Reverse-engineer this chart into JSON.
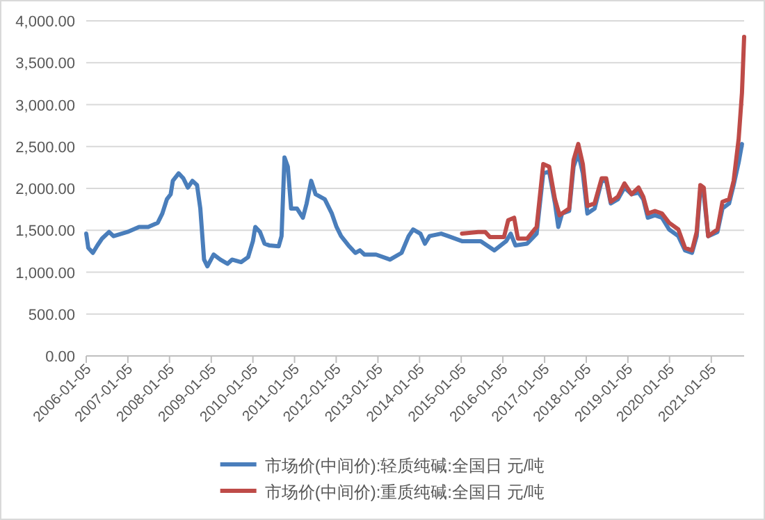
{
  "chart_data": {
    "type": "line",
    "legend": "bottom",
    "grid": "y",
    "marker": "none",
    "line_style": "solid",
    "xlim": [
      "2006-01-05",
      "2021-10-20"
    ],
    "ylim": [
      0,
      4000
    ],
    "xticks": [
      "2006-01-05",
      "2007-01-05",
      "2008-01-05",
      "2009-01-05",
      "2010-01-05",
      "2011-01-05",
      "2012-01-05",
      "2013-01-05",
      "2014-01-05",
      "2015-01-05",
      "2016-01-05",
      "2017-01-05",
      "2018-01-05",
      "2019-01-05",
      "2020-01-05",
      "2021-01-05"
    ],
    "yticks": [
      {
        "value": 0,
        "label": "0.00"
      },
      {
        "value": 500,
        "label": "500.00"
      },
      {
        "value": 1000,
        "label": "1,000.00"
      },
      {
        "value": 1500,
        "label": "1,500.00"
      },
      {
        "value": 2000,
        "label": "2,000.00"
      },
      {
        "value": 2500,
        "label": "2,500.00"
      },
      {
        "value": 3000,
        "label": "3,000.00"
      },
      {
        "value": 3500,
        "label": "3,500.00"
      },
      {
        "value": 4000,
        "label": "4,000.00"
      }
    ],
    "series": [
      {
        "name": "市场价(中间价):轻质纯碱:全国日 元/吨",
        "color": "#4a7ebb",
        "x": [
          "2006-01-05",
          "2006-01-23",
          "2006-03-04",
          "2006-04-13",
          "2006-05-23",
          "2006-07-24",
          "2006-09-02",
          "2007-01-01",
          "2007-04-13",
          "2007-07-02",
          "2007-09-24",
          "2007-11-03",
          "2007-12-13",
          "2008-01-15",
          "2008-02-03",
          "2008-03-25",
          "2008-05-05",
          "2008-06-14",
          "2008-07-24",
          "2008-09-02",
          "2008-10-01",
          "2008-11-03",
          "2008-12-02",
          "2009-01-26",
          "2009-03-25",
          "2009-05-27",
          "2009-07-06",
          "2009-09-24",
          "2009-11-24",
          "2010-01-05",
          "2010-01-26",
          "2010-03-08",
          "2010-04-17",
          "2010-05-27",
          "2010-08-19",
          "2010-09-13",
          "2010-10-09",
          "2010-11-07",
          "2010-12-06",
          "2011-01-26",
          "2011-03-19",
          "2011-04-21",
          "2011-05-31",
          "2011-07-09",
          "2011-09-27",
          "2011-11-28",
          "2012-01-08",
          "2012-02-17",
          "2012-04-21",
          "2012-06-21",
          "2012-07-31",
          "2012-09-09",
          "2012-12-20",
          "2013-04-21",
          "2013-07-31",
          "2013-10-01",
          "2013-11-10",
          "2014-01-12",
          "2014-02-21",
          "2014-04-02",
          "2014-07-13",
          "2014-09-13",
          "2015-01-12",
          "2015-06-25",
          "2015-10-23",
          "2016-02-03",
          "2016-03-14",
          "2016-04-24",
          "2016-08-04",
          "2016-10-27",
          "2016-12-24",
          "2017-02-14",
          "2017-04-06",
          "2017-05-05",
          "2017-06-07",
          "2017-08-08",
          "2017-09-16",
          "2017-10-27",
          "2017-12-06",
          "2018-01-15",
          "2018-03-19",
          "2018-05-20",
          "2018-06-29",
          "2018-08-08",
          "2018-10-09",
          "2018-12-06",
          "2019-02-06",
          "2019-04-09",
          "2019-05-20",
          "2019-06-29",
          "2019-08-30",
          "2019-10-31",
          "2020-01-01",
          "2020-03-22",
          "2020-05-20",
          "2020-07-20",
          "2020-08-30",
          "2020-10-01",
          "2020-10-31",
          "2020-12-09",
          "2021-02-28",
          "2021-04-13",
          "2021-06-10",
          "2021-07-20",
          "2021-09-02",
          "2021-10-01"
        ],
        "values": [
          1460,
          1290,
          1230,
          1320,
          1400,
          1480,
          1430,
          1480,
          1540,
          1540,
          1590,
          1700,
          1870,
          1930,
          2090,
          2180,
          2120,
          2010,
          2090,
          2040,
          1760,
          1150,
          1070,
          1210,
          1150,
          1100,
          1150,
          1120,
          1180,
          1370,
          1540,
          1480,
          1340,
          1320,
          1310,
          1430,
          2370,
          2260,
          1760,
          1760,
          1650,
          1820,
          2090,
          1930,
          1870,
          1700,
          1540,
          1430,
          1320,
          1230,
          1260,
          1210,
          1210,
          1150,
          1230,
          1430,
          1510,
          1460,
          1340,
          1430,
          1460,
          1430,
          1370,
          1370,
          1260,
          1370,
          1460,
          1320,
          1340,
          1460,
          2180,
          2200,
          1820,
          1540,
          1700,
          1730,
          2260,
          2420,
          2180,
          1700,
          1760,
          2090,
          2090,
          1820,
          1870,
          2010,
          1930,
          1950,
          1870,
          1650,
          1680,
          1650,
          1510,
          1430,
          1260,
          1230,
          1430,
          1980,
          1930,
          1430,
          1480,
          1760,
          1820,
          2040,
          2310,
          2530
        ]
      },
      {
        "name": "市场价(中间价):重质纯碱:全国日 元/吨",
        "color": "#be4b48",
        "x": [
          "2015-01-12",
          "2015-06-03",
          "2015-08-04",
          "2015-09-13",
          "2016-01-15",
          "2016-02-21",
          "2016-04-13",
          "2016-05-16",
          "2016-08-04",
          "2016-10-27",
          "2016-12-24",
          "2017-02-14",
          "2017-04-06",
          "2017-05-16",
          "2017-08-08",
          "2017-09-16",
          "2017-10-27",
          "2017-12-06",
          "2018-01-15",
          "2018-03-19",
          "2018-05-20",
          "2018-06-29",
          "2018-08-08",
          "2018-10-09",
          "2018-12-06",
          "2019-02-06",
          "2019-04-09",
          "2019-05-20",
          "2019-06-29",
          "2019-08-30",
          "2019-10-31",
          "2020-01-01",
          "2020-03-22",
          "2020-05-20",
          "2020-07-20",
          "2020-08-30",
          "2020-10-01",
          "2020-10-31",
          "2020-12-09",
          "2021-02-28",
          "2021-04-13",
          "2021-06-10",
          "2021-07-20",
          "2021-09-02",
          "2021-10-01",
          "2021-10-20"
        ],
        "values": [
          1460,
          1480,
          1480,
          1420,
          1420,
          1620,
          1650,
          1400,
          1400,
          1540,
          2290,
          2260,
          1870,
          1680,
          1760,
          2340,
          2530,
          2290,
          1790,
          1820,
          2120,
          2120,
          1840,
          1900,
          2060,
          1930,
          2010,
          1900,
          1700,
          1730,
          1700,
          1590,
          1510,
          1290,
          1260,
          1480,
          2040,
          2010,
          1430,
          1510,
          1840,
          1870,
          2090,
          2590,
          3140,
          3810
        ]
      }
    ]
  }
}
